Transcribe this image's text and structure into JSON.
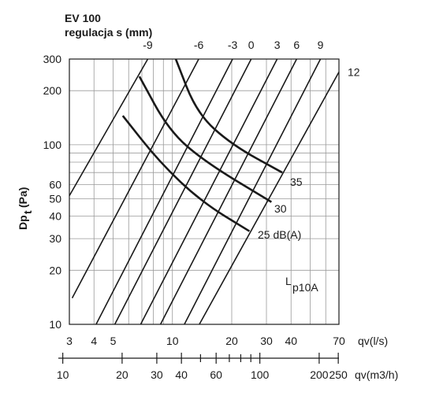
{
  "chart_data": {
    "type": "line",
    "title": "EV 100",
    "subtitle": "regulacja s (mm)",
    "ylabel_main": "Dp",
    "ylabel_sub": "t",
    "ylabel_unit": "(Pa)",
    "xlabel": "qv(l/s)",
    "xlabel2": "qv(m3/h)",
    "xlim": [
      3,
      70
    ],
    "ylim": [
      10,
      300
    ],
    "x_scale": "log",
    "y_scale": "log",
    "grid": true,
    "y_ticks": [
      10,
      20,
      30,
      40,
      50,
      60,
      100,
      200,
      300
    ],
    "x_ticks": [
      3,
      4,
      5,
      10,
      20,
      30,
      40,
      70
    ],
    "x2_ticks": [
      10,
      20,
      30,
      40,
      60,
      100,
      200,
      250
    ],
    "settings_series": [
      {
        "name": "-9",
        "points": [
          [
            3.0,
            52
          ],
          [
            7.5,
            300
          ]
        ]
      },
      {
        "name": "-6",
        "points": [
          [
            3.1,
            14
          ],
          [
            13.6,
            300
          ]
        ]
      },
      {
        "name": "-3",
        "points": [
          [
            4.1,
            10
          ],
          [
            20.2,
            300
          ]
        ]
      },
      {
        "name": "0",
        "points": [
          [
            5.1,
            10
          ],
          [
            25.1,
            300
          ]
        ]
      },
      {
        "name": "3",
        "points": [
          [
            6.9,
            10
          ],
          [
            34.0,
            300
          ]
        ]
      },
      {
        "name": "6",
        "points": [
          [
            8.7,
            10
          ],
          [
            42.7,
            300
          ]
        ]
      },
      {
        "name": "9",
        "points": [
          [
            11.5,
            10
          ],
          [
            56.4,
            300
          ]
        ]
      },
      {
        "name": "12",
        "points": [
          [
            13.7,
            10
          ],
          [
            70.0,
            254
          ]
        ]
      }
    ],
    "noise_label": "Lp10A",
    "noise_label_main": "L",
    "noise_label_sub": "p10A",
    "noise_series": [
      {
        "name": "25 dB(A)",
        "points": [
          [
            5.6,
            145
          ],
          [
            8.6,
            80
          ],
          [
            14.1,
            48
          ],
          [
            24.6,
            33
          ]
        ]
      },
      {
        "name": "30",
        "points": [
          [
            6.8,
            240
          ],
          [
            9.6,
            120
          ],
          [
            14.7,
            80
          ],
          [
            31.8,
            48
          ]
        ]
      },
      {
        "name": "35",
        "points": [
          [
            10.4,
            300
          ],
          [
            13.3,
            150
          ],
          [
            20.0,
            100
          ],
          [
            36.1,
            70
          ]
        ]
      }
    ],
    "noise_labels": [
      "35",
      "30",
      "25 dB(A)"
    ]
  }
}
